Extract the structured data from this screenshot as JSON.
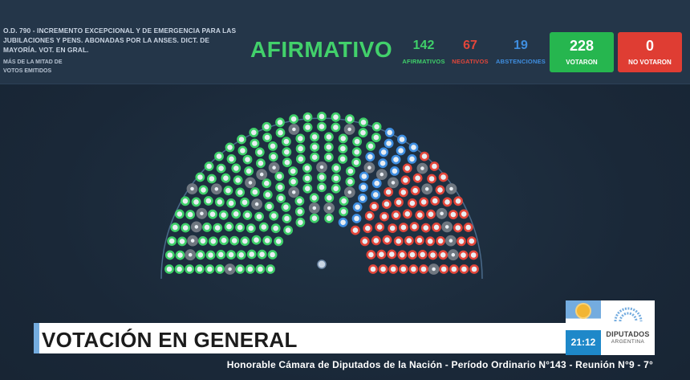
{
  "motion": {
    "title": "O.D. 790 - INCREMENTO EXCEPCIONAL Y DE EMERGENCIA PARA LAS JUBILACIONES Y PENS. ABONADAS POR LA ANSES. DICT. DE MAYORÍA. VOT. EN GRAL.",
    "majority_line1": "MÁS DE LA MITAD DE",
    "majority_line2": "VOTOS EMITIDOS"
  },
  "result": "AFIRMATIVO",
  "counts": {
    "afirmativos": {
      "value": "142",
      "label": "AFIRMATIVOS"
    },
    "negativos": {
      "value": "67",
      "label": "NEGATIVOS"
    },
    "abstenciones": {
      "value": "19",
      "label": "ABSTENCIONES"
    },
    "votaron": {
      "value": "228",
      "label": "VOTARON"
    },
    "no_votaron": {
      "value": "0",
      "label": "NO VOTARON"
    }
  },
  "colors": {
    "afirmativo": "#3fcf69",
    "negativo": "#e2463a",
    "abstencion": "#3f8ee0",
    "ausente": "#6f7780"
  },
  "banner": {
    "title": "VOTACIÓN EN GENERAL"
  },
  "clock": "21:12",
  "logo": {
    "name": "DIPUTADOS",
    "sub": "ARGENTINA"
  },
  "footer": "Honorable Cámara de Diputados de la Nación - Período Ordinario N°143 - Reunión N°9 - 7°"
}
